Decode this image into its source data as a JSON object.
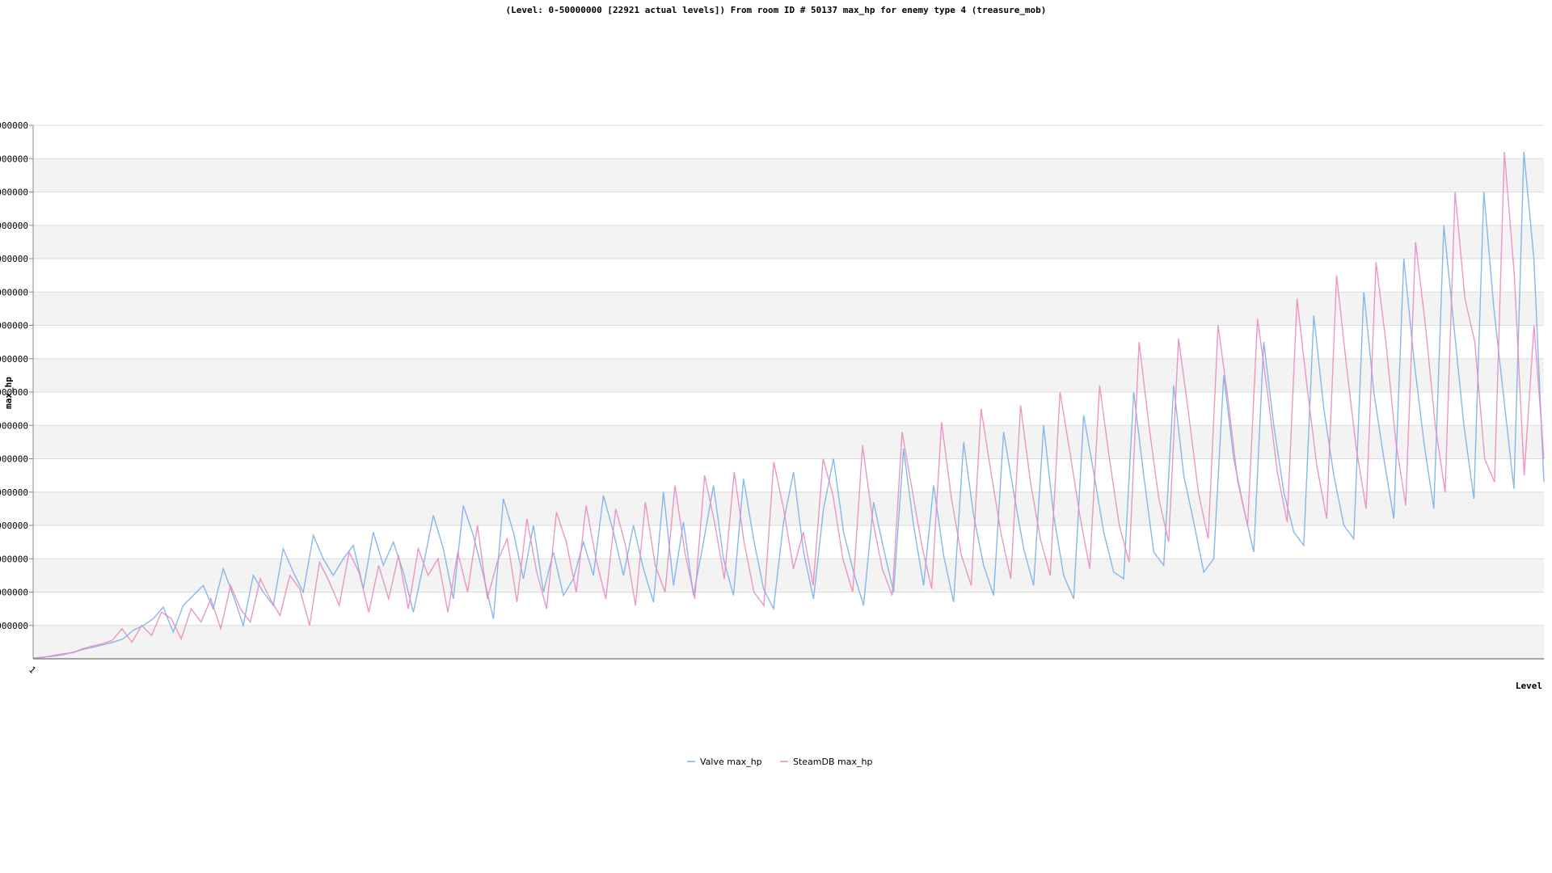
{
  "chart_data": {
    "type": "line",
    "title": "(Level: 0-50000000 [22921 actual levels]) From room ID # 50137 max_hp for enemy type 4 (treasure_mob)",
    "xlabel": "Level",
    "ylabel": "max_hp",
    "x_tick_labels": [
      "1"
    ],
    "y_tick_labels": [
      "0000000",
      "000000",
      "000000",
      "000000",
      "000000",
      "000000",
      "000000",
      "000000",
      "000000",
      "000000",
      "000000",
      "000000",
      "000000",
      "000000",
      "000000",
      "000000"
    ],
    "ylim": [
      0,
      16
    ],
    "xlim": [
      0,
      150
    ],
    "grid": "horizontal bands",
    "legend_position": "bottom-center",
    "series": [
      {
        "name": "Valve max_hp",
        "color": "#7ab0ea",
        "values": [
          0.02,
          0.05,
          0.08,
          0.12,
          0.2,
          0.28,
          0.35,
          0.42,
          0.5,
          0.6,
          0.85,
          1.0,
          1.2,
          1.55,
          0.8,
          1.6,
          1.9,
          2.2,
          1.5,
          2.7,
          1.9,
          1.0,
          2.5,
          2.0,
          1.6,
          3.3,
          2.6,
          2.0,
          3.7,
          3.0,
          2.5,
          3.0,
          3.4,
          2.1,
          3.8,
          2.8,
          3.5,
          2.6,
          1.4,
          2.8,
          4.3,
          3.3,
          1.8,
          4.6,
          3.7,
          2.5,
          1.2,
          4.8,
          3.8,
          2.4,
          4.0,
          2.0,
          3.2,
          1.9,
          2.4,
          3.5,
          2.5,
          4.9,
          3.8,
          2.5,
          4.0,
          2.7,
          1.7,
          5.0,
          2.2,
          4.1,
          1.9,
          3.5,
          5.2,
          3.0,
          1.9,
          5.4,
          3.6,
          2.1,
          1.5,
          4.1,
          5.6,
          3.2,
          1.8,
          4.5,
          6.0,
          3.8,
          2.6,
          1.6,
          4.7,
          3.3,
          2.0,
          6.3,
          4.0,
          2.2,
          5.2,
          3.1,
          1.7,
          6.5,
          4.3,
          2.8,
          1.9,
          6.8,
          5.0,
          3.3,
          2.2,
          7.0,
          4.3,
          2.5,
          1.8,
          7.3,
          5.6,
          3.8,
          2.6,
          2.4,
          8.0,
          5.5,
          3.2,
          2.8,
          8.2,
          5.5,
          4.1,
          2.6,
          3.0,
          8.5,
          6.0,
          4.5,
          3.2,
          9.5,
          7.0,
          5.0,
          3.8,
          3.4,
          10.3,
          7.5,
          5.5,
          4.0,
          3.6,
          11.0,
          8.0,
          6.0,
          4.2,
          12.0,
          9.0,
          6.5,
          4.5,
          13.0,
          10.0,
          7.0,
          4.8,
          14.0,
          10.5,
          7.8,
          5.1,
          15.2,
          12.0,
          5.3
        ]
      },
      {
        "name": "SteamDB max_hp",
        "color": "#ea8bc0",
        "values": [
          0.02,
          0.04,
          0.1,
          0.15,
          0.18,
          0.3,
          0.38,
          0.45,
          0.55,
          0.9,
          0.5,
          1.0,
          0.7,
          1.4,
          1.2,
          0.6,
          1.5,
          1.1,
          1.8,
          0.9,
          2.2,
          1.5,
          1.1,
          2.4,
          1.8,
          1.3,
          2.5,
          2.1,
          1.0,
          2.9,
          2.3,
          1.6,
          3.2,
          2.6,
          1.4,
          2.8,
          1.8,
          3.1,
          1.5,
          3.3,
          2.5,
          3.0,
          1.4,
          3.2,
          2.0,
          4.0,
          1.8,
          2.9,
          3.6,
          1.7,
          4.2,
          2.6,
          1.5,
          4.4,
          3.5,
          2.0,
          4.6,
          3.0,
          1.8,
          4.5,
          3.4,
          1.6,
          4.7,
          2.8,
          2.0,
          5.2,
          3.2,
          1.8,
          5.5,
          4.1,
          2.4,
          5.6,
          3.5,
          2.0,
          1.6,
          5.9,
          4.5,
          2.7,
          3.8,
          2.2,
          6.0,
          4.9,
          3.0,
          2.0,
          6.4,
          4.2,
          2.7,
          1.9,
          6.8,
          5.1,
          3.4,
          2.1,
          7.1,
          4.8,
          3.1,
          2.2,
          7.5,
          5.6,
          3.8,
          2.4,
          7.6,
          5.3,
          3.6,
          2.5,
          8.0,
          6.2,
          4.3,
          2.7,
          8.2,
          6.0,
          4.0,
          2.9,
          9.5,
          7.0,
          4.8,
          3.5,
          9.6,
          7.4,
          5.0,
          3.6,
          10.0,
          7.8,
          5.3,
          4.0,
          10.2,
          8.0,
          5.6,
          4.1,
          10.8,
          8.2,
          5.8,
          4.2,
          11.5,
          8.8,
          6.3,
          4.5,
          11.9,
          9.5,
          6.5,
          4.6,
          12.5,
          10.0,
          7.0,
          5.0,
          14.0,
          10.8,
          9.5,
          6.0,
          5.3,
          15.2,
          11.5,
          5.5,
          10.0,
          6.0
        ]
      }
    ]
  }
}
